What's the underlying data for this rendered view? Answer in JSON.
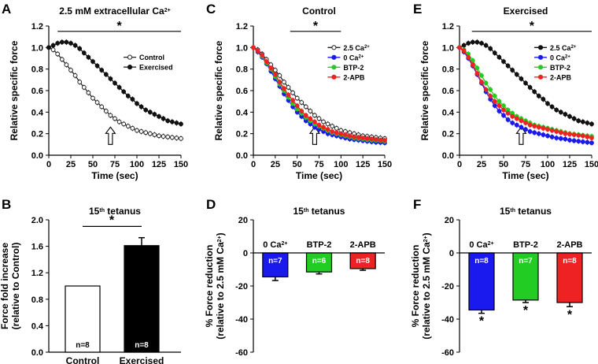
{
  "chart_data": [
    {
      "panel": "A",
      "type": "line",
      "title": "2.5 mM extracellular Ca",
      "title_sup": "2+",
      "xlabel": "Time (sec)",
      "ylabel": "Relative specific force",
      "xlim": [
        0,
        150
      ],
      "ylim": [
        0,
        1.2
      ],
      "xticks": [
        "0",
        "25",
        "50",
        "75",
        "100",
        "125",
        "150"
      ],
      "yticks": [
        "0.0",
        "0.2",
        "0.4",
        "0.6",
        "0.8",
        "1.0",
        "1.2"
      ],
      "significance": "*",
      "arrow_at": 70,
      "legend": [
        "Control",
        "Exercised"
      ],
      "series": [
        {
          "name": "Control",
          "color": "#ffffff",
          "stroke": "#222222",
          "open": true,
          "x": [
            0,
            5,
            10,
            15,
            20,
            25,
            30,
            35,
            40,
            45,
            50,
            55,
            60,
            65,
            70,
            75,
            80,
            85,
            90,
            95,
            100,
            105,
            110,
            115,
            120,
            125,
            130,
            135,
            140,
            145,
            150
          ],
          "y": [
            1.0,
            0.98,
            0.94,
            0.89,
            0.84,
            0.79,
            0.74,
            0.68,
            0.63,
            0.58,
            0.53,
            0.49,
            0.45,
            0.41,
            0.37,
            0.34,
            0.31,
            0.29,
            0.27,
            0.25,
            0.23,
            0.22,
            0.21,
            0.2,
            0.19,
            0.18,
            0.175,
            0.17,
            0.165,
            0.16,
            0.155
          ]
        },
        {
          "name": "Exercised",
          "color": "#111111",
          "stroke": "#111111",
          "open": false,
          "x": [
            0,
            5,
            10,
            15,
            20,
            25,
            30,
            35,
            40,
            45,
            50,
            55,
            60,
            65,
            70,
            75,
            80,
            85,
            90,
            95,
            100,
            105,
            110,
            115,
            120,
            125,
            130,
            135,
            140,
            145,
            150
          ],
          "y": [
            1.0,
            1.02,
            1.04,
            1.05,
            1.05,
            1.04,
            1.02,
            0.99,
            0.95,
            0.91,
            0.87,
            0.83,
            0.79,
            0.75,
            0.71,
            0.67,
            0.63,
            0.59,
            0.55,
            0.52,
            0.48,
            0.45,
            0.42,
            0.4,
            0.38,
            0.36,
            0.34,
            0.32,
            0.31,
            0.3,
            0.29
          ]
        }
      ]
    },
    {
      "panel": "C",
      "type": "line",
      "title": "Control",
      "title_sup": "",
      "xlabel": "Time (sec)",
      "ylabel": "Relative specific force",
      "xlim": [
        0,
        150
      ],
      "ylim": [
        0,
        1.2
      ],
      "xticks": [
        "0",
        "25",
        "50",
        "75",
        "100",
        "125",
        "150"
      ],
      "yticks": [
        "0.0",
        "0.2",
        "0.4",
        "0.6",
        "0.8",
        "1.0",
        "1.2"
      ],
      "significance": "*",
      "arrow_at": 70,
      "legend": [
        "2.5 Ca2+",
        "0 Ca2+",
        "BTP-2",
        "2-APB"
      ],
      "series": [
        {
          "name": "2.5 Ca",
          "sup": "2+",
          "color": "#ffffff",
          "stroke": "#222222",
          "open": true,
          "x": [
            0,
            5,
            10,
            15,
            20,
            25,
            30,
            35,
            40,
            45,
            50,
            55,
            60,
            65,
            70,
            75,
            80,
            85,
            90,
            95,
            100,
            105,
            110,
            115,
            120,
            125,
            130,
            135,
            140,
            145,
            150
          ],
          "y": [
            1.0,
            0.98,
            0.94,
            0.89,
            0.84,
            0.79,
            0.74,
            0.68,
            0.63,
            0.58,
            0.53,
            0.49,
            0.45,
            0.41,
            0.37,
            0.34,
            0.31,
            0.29,
            0.27,
            0.25,
            0.23,
            0.22,
            0.21,
            0.2,
            0.19,
            0.18,
            0.175,
            0.17,
            0.165,
            0.16,
            0.155
          ]
        },
        {
          "name": "0 Ca",
          "sup": "2+",
          "color": "#1a1aee",
          "stroke": "#1a1aee",
          "open": false,
          "x": [
            0,
            5,
            10,
            15,
            20,
            25,
            30,
            35,
            40,
            45,
            50,
            55,
            60,
            65,
            70,
            75,
            80,
            85,
            90,
            95,
            100,
            105,
            110,
            115,
            120,
            125,
            130,
            135,
            140,
            145,
            150
          ],
          "y": [
            1.0,
            0.96,
            0.91,
            0.85,
            0.78,
            0.71,
            0.64,
            0.57,
            0.51,
            0.45,
            0.4,
            0.36,
            0.32,
            0.29,
            0.26,
            0.24,
            0.22,
            0.2,
            0.19,
            0.18,
            0.17,
            0.16,
            0.15,
            0.145,
            0.14,
            0.135,
            0.13,
            0.125,
            0.12,
            0.118,
            0.115
          ]
        },
        {
          "name": "BTP-2",
          "sup": "",
          "color": "#22cc22",
          "stroke": "#22cc22",
          "open": false,
          "x": [
            0,
            5,
            10,
            15,
            20,
            25,
            30,
            35,
            40,
            45,
            50,
            55,
            60,
            65,
            70,
            75,
            80,
            85,
            90,
            95,
            100,
            105,
            110,
            115,
            120,
            125,
            130,
            135,
            140,
            145,
            150
          ],
          "y": [
            1.0,
            0.97,
            0.92,
            0.86,
            0.8,
            0.73,
            0.66,
            0.6,
            0.54,
            0.48,
            0.43,
            0.39,
            0.35,
            0.32,
            0.29,
            0.27,
            0.25,
            0.23,
            0.21,
            0.2,
            0.19,
            0.18,
            0.17,
            0.16,
            0.155,
            0.15,
            0.145,
            0.14,
            0.138,
            0.135,
            0.13
          ]
        },
        {
          "name": "2-APB",
          "sup": "",
          "color": "#ee2222",
          "stroke": "#ee2222",
          "open": false,
          "x": [
            0,
            5,
            10,
            15,
            20,
            25,
            30,
            35,
            40,
            45,
            50,
            55,
            60,
            65,
            70,
            75,
            80,
            85,
            90,
            95,
            100,
            105,
            110,
            115,
            120,
            125,
            130,
            135,
            140,
            145,
            150
          ],
          "y": [
            1.0,
            0.97,
            0.93,
            0.87,
            0.81,
            0.75,
            0.68,
            0.62,
            0.56,
            0.51,
            0.46,
            0.41,
            0.37,
            0.34,
            0.31,
            0.28,
            0.26,
            0.24,
            0.22,
            0.21,
            0.2,
            0.19,
            0.18,
            0.17,
            0.165,
            0.16,
            0.155,
            0.15,
            0.145,
            0.14,
            0.138
          ]
        }
      ]
    },
    {
      "panel": "E",
      "type": "line",
      "title": "Exercised",
      "title_sup": "",
      "xlabel": "Time (sec)",
      "ylabel": "Relative specific force",
      "xlim": [
        0,
        150
      ],
      "ylim": [
        0,
        1.2
      ],
      "xticks": [
        "0",
        "25",
        "50",
        "75",
        "100",
        "125",
        "150"
      ],
      "yticks": [
        "0.0",
        "0.2",
        "0.4",
        "0.6",
        "0.8",
        "1.0",
        "1.2"
      ],
      "significance": "*",
      "arrow_at": 70,
      "legend": [
        "2.5 Ca2+",
        "0 Ca2+",
        "BTP-2",
        "2-APB"
      ],
      "series": [
        {
          "name": "2.5 Ca",
          "sup": "2+",
          "color": "#111111",
          "stroke": "#111111",
          "open": false,
          "x": [
            0,
            5,
            10,
            15,
            20,
            25,
            30,
            35,
            40,
            45,
            50,
            55,
            60,
            65,
            70,
            75,
            80,
            85,
            90,
            95,
            100,
            105,
            110,
            115,
            120,
            125,
            130,
            135,
            140,
            145,
            150
          ],
          "y": [
            1.0,
            1.02,
            1.04,
            1.05,
            1.05,
            1.04,
            1.02,
            0.99,
            0.95,
            0.91,
            0.87,
            0.83,
            0.79,
            0.75,
            0.71,
            0.67,
            0.63,
            0.59,
            0.55,
            0.52,
            0.48,
            0.45,
            0.42,
            0.4,
            0.38,
            0.36,
            0.34,
            0.32,
            0.31,
            0.3,
            0.29
          ]
        },
        {
          "name": "0 Ca",
          "sup": "2+",
          "color": "#1a1aee",
          "stroke": "#1a1aee",
          "open": false,
          "x": [
            0,
            5,
            10,
            15,
            20,
            25,
            30,
            35,
            40,
            45,
            50,
            55,
            60,
            65,
            70,
            75,
            80,
            85,
            90,
            95,
            100,
            105,
            110,
            115,
            120,
            125,
            130,
            135,
            140,
            145,
            150
          ],
          "y": [
            1.0,
            0.96,
            0.9,
            0.83,
            0.75,
            0.67,
            0.59,
            0.52,
            0.46,
            0.41,
            0.37,
            0.33,
            0.3,
            0.28,
            0.26,
            0.24,
            0.22,
            0.21,
            0.2,
            0.19,
            0.18,
            0.17,
            0.16,
            0.155,
            0.15,
            0.14,
            0.135,
            0.13,
            0.125,
            0.12,
            0.115
          ]
        },
        {
          "name": "BTP-2",
          "sup": "",
          "color": "#22cc22",
          "stroke": "#22cc22",
          "open": false,
          "x": [
            0,
            5,
            10,
            15,
            20,
            25,
            30,
            35,
            40,
            45,
            50,
            55,
            60,
            65,
            70,
            75,
            80,
            85,
            90,
            95,
            100,
            105,
            110,
            115,
            120,
            125,
            130,
            135,
            140,
            145,
            150
          ],
          "y": [
            1.0,
            0.98,
            0.94,
            0.88,
            0.81,
            0.74,
            0.67,
            0.61,
            0.55,
            0.5,
            0.46,
            0.42,
            0.39,
            0.36,
            0.34,
            0.32,
            0.3,
            0.28,
            0.27,
            0.26,
            0.25,
            0.24,
            0.23,
            0.22,
            0.21,
            0.2,
            0.195,
            0.19,
            0.185,
            0.18,
            0.175
          ]
        },
        {
          "name": "2-APB",
          "sup": "",
          "color": "#ee2222",
          "stroke": "#ee2222",
          "open": false,
          "x": [
            0,
            5,
            10,
            15,
            20,
            25,
            30,
            35,
            40,
            45,
            50,
            55,
            60,
            65,
            70,
            75,
            80,
            85,
            90,
            95,
            100,
            105,
            110,
            115,
            120,
            125,
            130,
            135,
            140,
            145,
            150
          ],
          "y": [
            1.0,
            0.97,
            0.91,
            0.84,
            0.76,
            0.68,
            0.61,
            0.55,
            0.5,
            0.46,
            0.42,
            0.39,
            0.36,
            0.34,
            0.32,
            0.3,
            0.28,
            0.27,
            0.26,
            0.25,
            0.24,
            0.23,
            0.22,
            0.21,
            0.2,
            0.195,
            0.19,
            0.185,
            0.18,
            0.17,
            0.16
          ]
        }
      ]
    },
    {
      "panel": "B",
      "type": "bar",
      "title": "15",
      "title_sup": "th",
      "title_tail": " tetanus",
      "ylabel": "Force fold increase",
      "ylabel2": "(relative to Control)",
      "ylim": [
        0,
        2.0
      ],
      "yticks": [
        "0.0",
        "0.4",
        "0.8",
        "1.2",
        "1.6",
        "2.0"
      ],
      "categories": [
        "Control",
        "Exercised"
      ],
      "values": [
        1.0,
        1.61
      ],
      "errors": [
        0,
        0.12
      ],
      "colors": [
        "#ffffff",
        "#000000"
      ],
      "n_labels": [
        "n=8",
        "n=8"
      ],
      "significance": "*"
    },
    {
      "panel": "D",
      "type": "bar",
      "title": "15",
      "title_sup": "th",
      "title_tail": " tetanus",
      "ylabel": "% Force reduction",
      "ylabel2": "(relative to 2.5 mM Ca",
      "ylabel2_sup": "2+",
      "ylabel2_tail": ")",
      "ylim": [
        -60,
        20
      ],
      "yticks": [
        "-60",
        "-40",
        "-20",
        "0",
        "20"
      ],
      "categories": [
        "0 Ca",
        "BTP-2",
        "2-APB"
      ],
      "category_sups": [
        "2+",
        "",
        ""
      ],
      "values": [
        -14.5,
        -11.5,
        -9.5
      ],
      "errors": [
        2.2,
        1.2,
        1.0
      ],
      "colors": [
        "#1a1aee",
        "#22cc22",
        "#ee2222"
      ],
      "n_labels": [
        "n=7",
        "n=6",
        "n=8"
      ],
      "stars": [
        "",
        "",
        ""
      ]
    },
    {
      "panel": "F",
      "type": "bar",
      "title": "15",
      "title_sup": "th",
      "title_tail": " tetanus",
      "ylabel": "% Force reduction",
      "ylabel2": "(relative to 2.5 mM Ca",
      "ylabel2_sup": "2+",
      "ylabel2_tail": ")",
      "ylim": [
        -60,
        20
      ],
      "yticks": [
        "-60",
        "-40",
        "-20",
        "0",
        "20"
      ],
      "categories": [
        "0 Ca",
        "BTP-2",
        "2-APB"
      ],
      "category_sups": [
        "2+",
        "",
        ""
      ],
      "values": [
        -34.5,
        -28.5,
        -30.0
      ],
      "errors": [
        2.0,
        1.5,
        2.5
      ],
      "colors": [
        "#1a1aee",
        "#22cc22",
        "#ee2222"
      ],
      "n_labels": [
        "n=8",
        "n=7",
        "n=8"
      ],
      "stars": [
        "*",
        "*",
        "*"
      ]
    }
  ]
}
